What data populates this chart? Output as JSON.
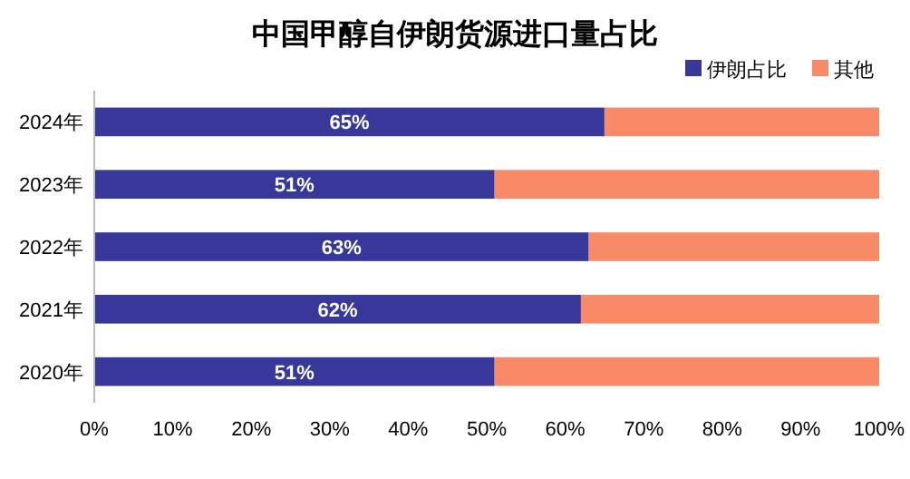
{
  "chart_data": {
    "type": "bar",
    "orientation": "horizontal",
    "stacked": true,
    "title": "中国甲醇自伊朗货源进口量占比",
    "categories": [
      "2024年",
      "2023年",
      "2022年",
      "2021年",
      "2020年"
    ],
    "series": [
      {
        "name": "伊朗占比",
        "color": "#38389a",
        "values": [
          65,
          51,
          63,
          62,
          51
        ],
        "value_labels": [
          "65%",
          "51%",
          "63%",
          "62%",
          "51%"
        ]
      },
      {
        "name": "其他",
        "color": "#f98a68",
        "values": [
          35,
          49,
          37,
          38,
          49
        ]
      }
    ],
    "xlim": [
      0,
      100
    ],
    "xticks": [
      {
        "value": 0,
        "label": "0%"
      },
      {
        "value": 10,
        "label": "10%"
      },
      {
        "value": 20,
        "label": "20%"
      },
      {
        "value": 30,
        "label": "30%"
      },
      {
        "value": 40,
        "label": "40%"
      },
      {
        "value": 50,
        "label": "50%"
      },
      {
        "value": 60,
        "label": "60%"
      },
      {
        "value": 70,
        "label": "70%"
      },
      {
        "value": 80,
        "label": "80%"
      },
      {
        "value": 90,
        "label": "90%"
      },
      {
        "value": 100,
        "label": "100%"
      }
    ],
    "grid": false,
    "legend": "top right"
  }
}
